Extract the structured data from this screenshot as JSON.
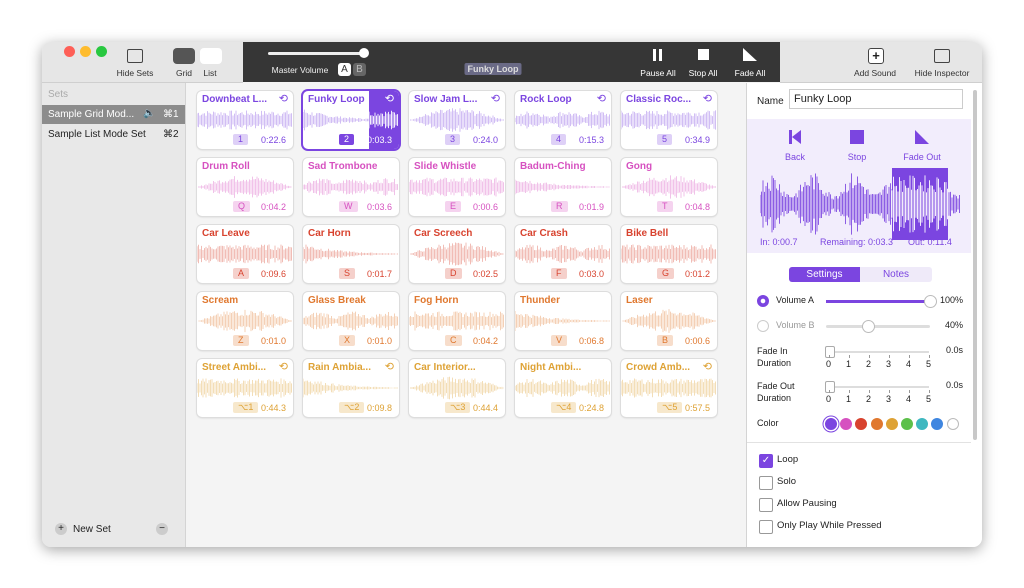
{
  "toolbar": {
    "hide_sets": "Hide Sets",
    "grid": "Grid",
    "list": "List",
    "master_volume": "Master Volume",
    "a": "A",
    "b": "B",
    "now_playing": "Funky Loop",
    "pause_all": "Pause All",
    "stop_all": "Stop All",
    "fade_all": "Fade All",
    "add_sound": "Add Sound",
    "hide_inspector": "Hide Inspector"
  },
  "sidebar": {
    "heading": "Sets",
    "sets": [
      {
        "name": "Sample Grid Mod...",
        "shortcut": "⌘1"
      },
      {
        "name": "Sample List Mode Set",
        "shortcut": "⌘2"
      }
    ],
    "new_set": "New Set"
  },
  "tiles": [
    {
      "title": "Downbeat L...",
      "key": "1",
      "time": "0:22.6",
      "loop": true,
      "color": "#7b45e0"
    },
    {
      "title": "Funky Loop",
      "key": "2",
      "time": "0:03.3",
      "loop": true,
      "color": "#7b45e0"
    },
    {
      "title": "Slow Jam L...",
      "key": "3",
      "time": "0:24.0",
      "loop": true,
      "color": "#7b45e0"
    },
    {
      "title": "Rock Loop",
      "key": "4",
      "time": "0:15.3",
      "loop": true,
      "color": "#7b45e0"
    },
    {
      "title": "Classic Roc...",
      "key": "5",
      "time": "0:34.9",
      "loop": true,
      "color": "#7b45e0"
    },
    {
      "title": "Drum Roll",
      "key": "Q",
      "time": "0:04.2",
      "loop": false,
      "color": "#d651c0"
    },
    {
      "title": "Sad Trombone",
      "key": "W",
      "time": "0:03.6",
      "loop": false,
      "color": "#d651c0"
    },
    {
      "title": "Slide Whistle",
      "key": "E",
      "time": "0:00.6",
      "loop": false,
      "color": "#d651c0"
    },
    {
      "title": "Badum-Ching",
      "key": "R",
      "time": "0:01.9",
      "loop": false,
      "color": "#d651c0"
    },
    {
      "title": "Gong",
      "key": "T",
      "time": "0:04.8",
      "loop": false,
      "color": "#d651c0"
    },
    {
      "title": "Car Leave",
      "key": "A",
      "time": "0:09.6",
      "loop": false,
      "color": "#d8432f"
    },
    {
      "title": "Car Horn",
      "key": "S",
      "time": "0:01.7",
      "loop": false,
      "color": "#d8432f"
    },
    {
      "title": "Car Screech",
      "key": "D",
      "time": "0:02.5",
      "loop": false,
      "color": "#d8432f"
    },
    {
      "title": "Car Crash",
      "key": "F",
      "time": "0:03.0",
      "loop": false,
      "color": "#d8432f"
    },
    {
      "title": "Bike Bell",
      "key": "G",
      "time": "0:01.2",
      "loop": false,
      "color": "#d8432f"
    },
    {
      "title": "Scream",
      "key": "Z",
      "time": "0:01.0",
      "loop": false,
      "color": "#e0782f"
    },
    {
      "title": "Glass Break",
      "key": "X",
      "time": "0:01.0",
      "loop": false,
      "color": "#e0782f"
    },
    {
      "title": "Fog Horn",
      "key": "C",
      "time": "0:04.2",
      "loop": false,
      "color": "#e0782f"
    },
    {
      "title": "Thunder",
      "key": "V",
      "time": "0:06.8",
      "loop": false,
      "color": "#e0782f"
    },
    {
      "title": "Laser",
      "key": "B",
      "time": "0:00.6",
      "loop": false,
      "color": "#e0782f"
    },
    {
      "title": "Street Ambi...",
      "key": "⌥1",
      "time": "0:44.3",
      "loop": true,
      "color": "#dea235"
    },
    {
      "title": "Rain Ambia...",
      "key": "⌥2",
      "time": "0:09.8",
      "loop": true,
      "color": "#dea235"
    },
    {
      "title": "Car Interior...",
      "key": "⌥3",
      "time": "0:44.4",
      "loop": false,
      "color": "#dea235"
    },
    {
      "title": "Night Ambi...",
      "key": "⌥4",
      "time": "0:24.8",
      "loop": false,
      "color": "#dea235"
    },
    {
      "title": "Crowd Amb...",
      "key": "⌥5",
      "time": "0:57.5",
      "loop": true,
      "color": "#dea235"
    }
  ],
  "inspector": {
    "name_label": "Name",
    "name_value": "Funky Loop",
    "back": "Back",
    "stop": "Stop",
    "fade_out": "Fade Out",
    "in_time": "In: 0:00.7",
    "remaining": "Remaining: 0:03.3",
    "out_time": "Out: 0:11.4",
    "tab_settings": "Settings",
    "tab_notes": "Notes",
    "volume_a": {
      "label": "Volume A",
      "value": 100,
      "value_label": "100%"
    },
    "volume_b": {
      "label": "Volume B",
      "value": 40,
      "value_label": "40%"
    },
    "fade_in": {
      "label": "Fade In Duration",
      "value_label": "0.0s"
    },
    "fade_out_duration": {
      "label": "Fade Out Duration",
      "value_label": "0.0s"
    },
    "duration_ticks": [
      0,
      1,
      2,
      3,
      4,
      5
    ],
    "color_label": "Color",
    "colors": [
      "#7b45e0",
      "#d651c0",
      "#d8432f",
      "#e0782f",
      "#dea235",
      "#5cc04a",
      "#3fb8c0",
      "#3f86e0",
      "#ffffff"
    ],
    "options": [
      {
        "label": "Loop",
        "checked": true
      },
      {
        "label": "Solo",
        "checked": false
      },
      {
        "label": "Allow Pausing",
        "checked": false
      },
      {
        "label": "Only Play While Pressed",
        "checked": false
      }
    ]
  }
}
